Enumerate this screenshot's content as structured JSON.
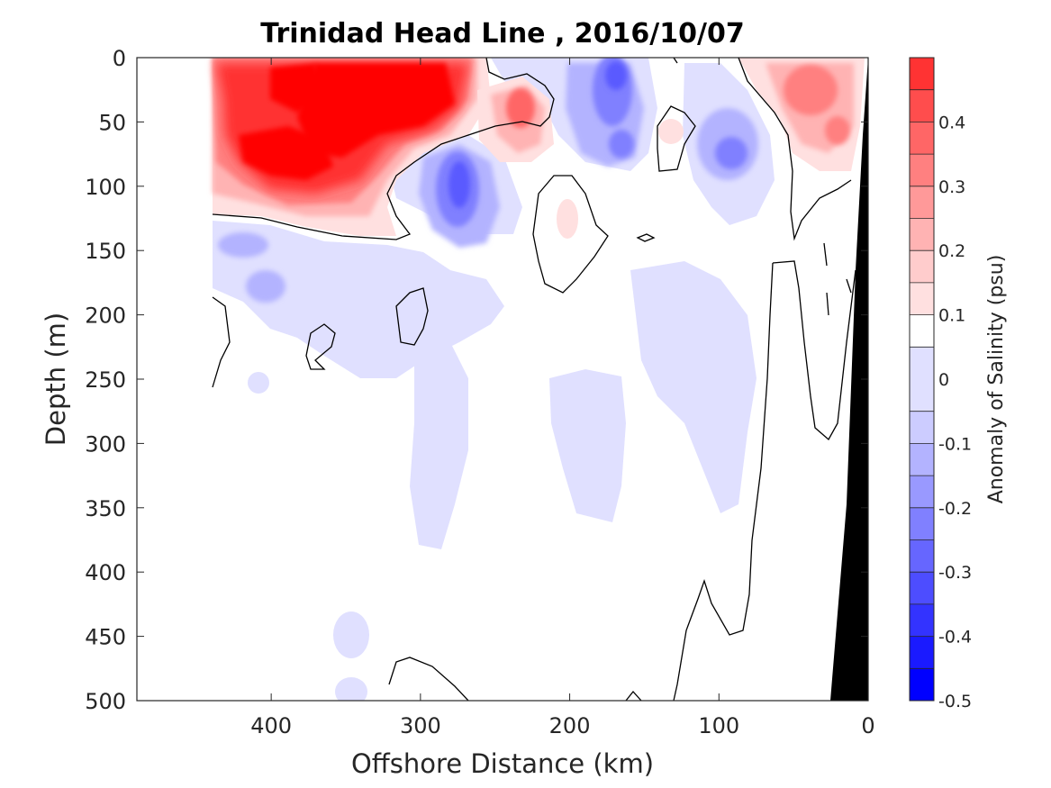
{
  "chart_data": {
    "type": "heatmap",
    "title": "Trinidad Head Line , 2016/10/07",
    "xlabel": "Offshore Distance (km)",
    "ylabel": "Depth (m)",
    "x_ticks": [
      400,
      300,
      200,
      100,
      0
    ],
    "xlim": [
      490,
      0
    ],
    "y_ticks": [
      0,
      50,
      100,
      150,
      200,
      250,
      300,
      350,
      400,
      450,
      500
    ],
    "ylim": [
      0,
      500
    ],
    "y_reversed": true,
    "colorbar": {
      "label": "Anomaly of Salinity (psu)",
      "ticks": [
        0.4,
        0.3,
        0.2,
        0.1,
        0,
        -0.1,
        -0.2,
        -0.3,
        -0.4,
        -0.5
      ],
      "range": [
        -0.5,
        0.5
      ],
      "levels": [
        -0.5,
        -0.45,
        -0.4,
        -0.35,
        -0.3,
        -0.25,
        -0.2,
        -0.15,
        -0.1,
        -0.05,
        0.05,
        0.1,
        0.15,
        0.2,
        0.25,
        0.3,
        0.35,
        0.4,
        0.45,
        0.5
      ],
      "colors": [
        "#0000ff",
        "#1a1aff",
        "#3333ff",
        "#4d4dff",
        "#6666ff",
        "#8080ff",
        "#9999ff",
        "#b3b3ff",
        "#ccccff",
        "#e0e0ff",
        "#ffffff",
        "#ffe0e0",
        "#ffcccc",
        "#ffb3b3",
        "#ff9999",
        "#ff8080",
        "#ff6666",
        "#ff4d4d",
        "#ff3333",
        "#ff0000"
      ]
    },
    "features": {
      "positive_anomaly": [
        {
          "x": [
            440,
            300
          ],
          "depth": [
            0,
            110
          ],
          "peak": 0.5
        },
        {
          "x": [
            400,
            360
          ],
          "depth": [
            60,
            100
          ],
          "peak": 0.5
        },
        {
          "x": [
            230,
            230
          ],
          "depth": [
            40,
            40
          ],
          "peak": 0.25
        },
        {
          "x": [
            60,
            0
          ],
          "depth": [
            0,
            100
          ],
          "peak": 0.2
        },
        {
          "x": [
            125,
            125
          ],
          "depth": [
            57,
            57
          ],
          "peak": 0.1
        },
        {
          "x": [
            200,
            200
          ],
          "depth": [
            125,
            125
          ],
          "peak": 0.1
        }
      ],
      "negative_anomaly": [
        {
          "x": [
            270,
            270
          ],
          "depth": [
            100,
            100
          ],
          "peak": -0.3
        },
        {
          "x": [
            190,
            150
          ],
          "depth": [
            0,
            110
          ],
          "peak": -0.25
        },
        {
          "x": [
            110,
            80
          ],
          "depth": [
            0,
            150
          ],
          "peak": -0.2
        },
        {
          "x": [
            440,
            250
          ],
          "depth": [
            140,
            220
          ],
          "peak": -0.15
        },
        {
          "x": [
            300,
            270
          ],
          "depth": [
            220,
            380
          ],
          "peak": -0.1
        },
        {
          "x": [
            200,
            150
          ],
          "depth": [
            240,
            410
          ],
          "peak": -0.1
        }
      ]
    },
    "bathymetry": {
      "color": "#000000",
      "surface_km": 0,
      "bottom_km": 27
    }
  }
}
